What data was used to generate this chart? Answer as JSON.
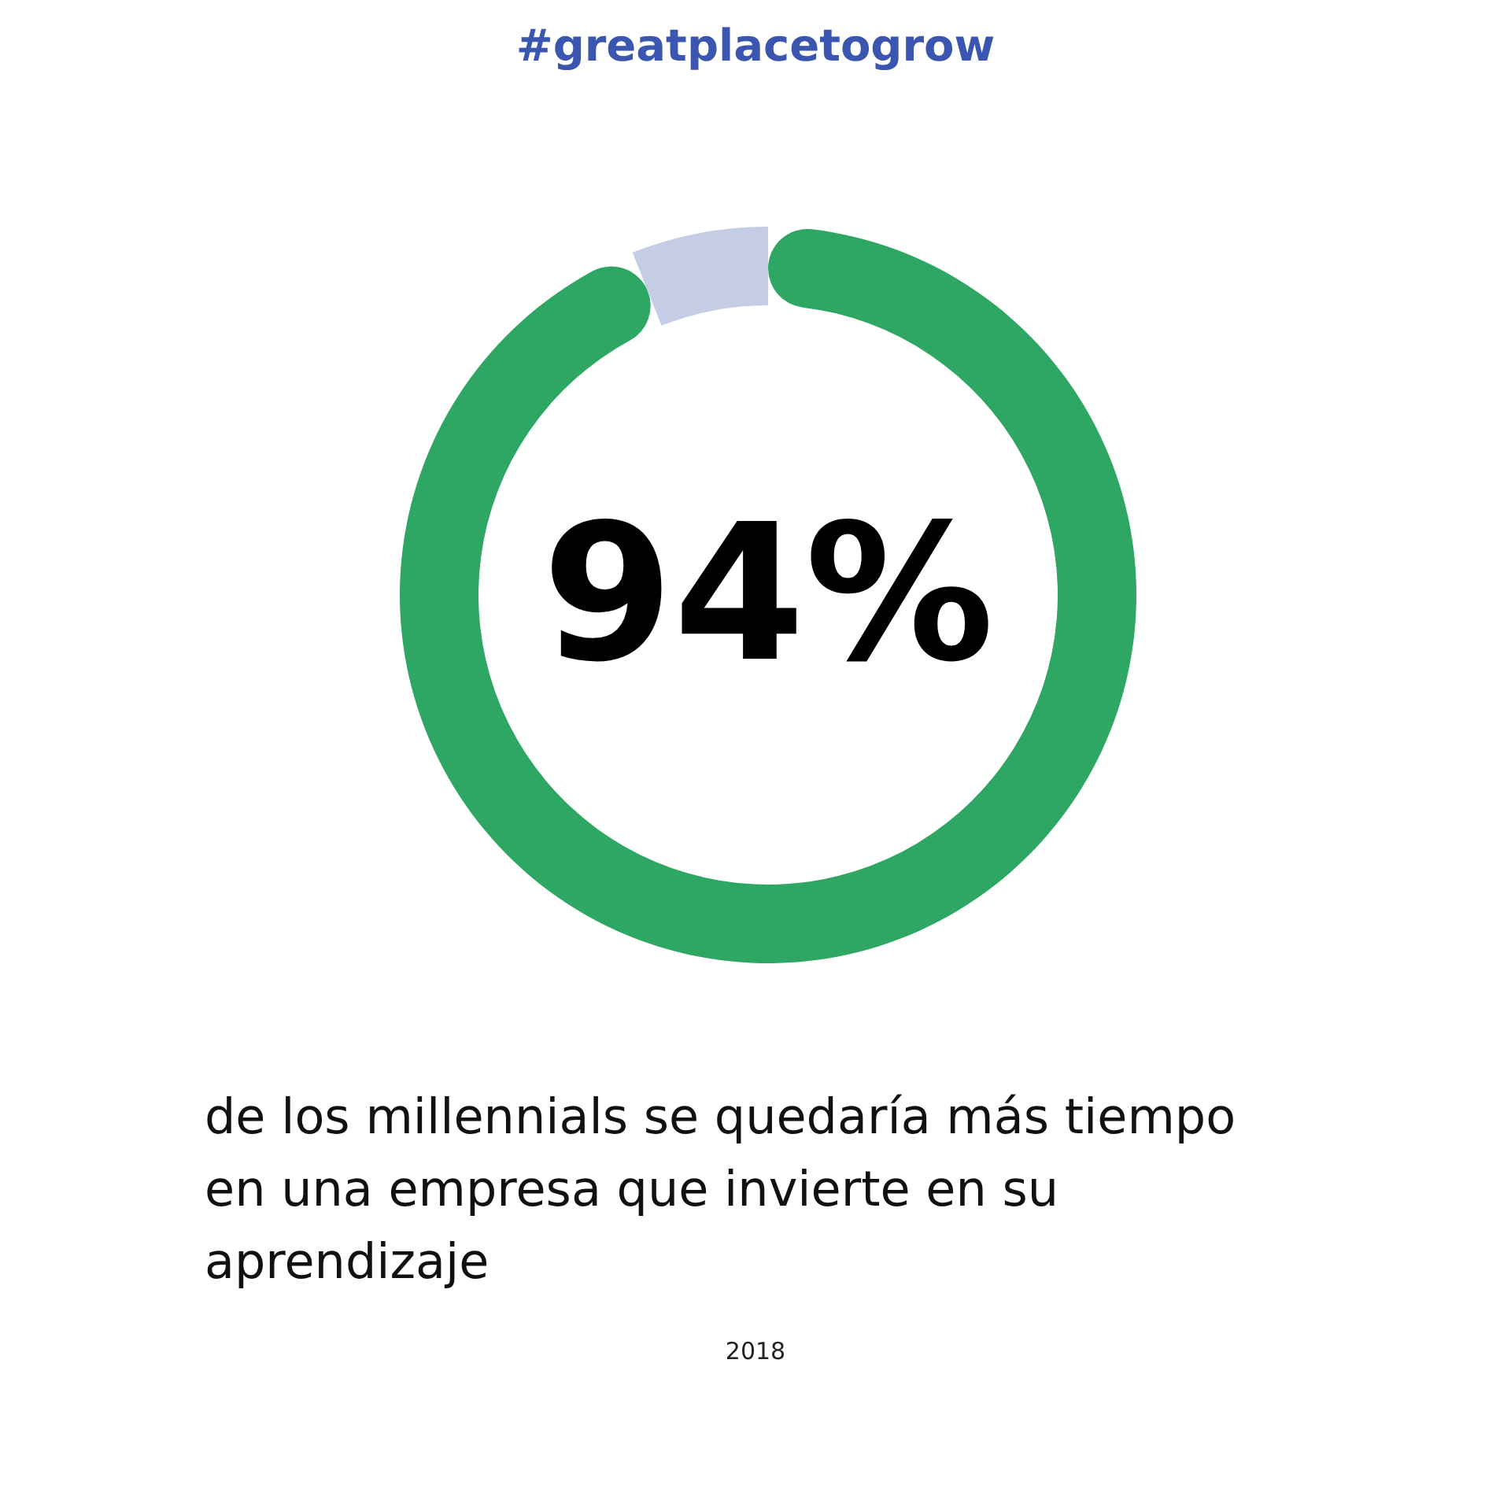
{
  "chart_data": {
    "type": "donut",
    "title": "#greatplacetogrow",
    "subtitle": "de los millennials se quedaría más tiempo en una empresa que invierte en su aprendizaje",
    "annotations": [
      "2018"
    ],
    "categories": [
      null,
      null
    ],
    "values": [
      94,
      6
    ],
    "colors": [
      "#2ea664",
      "#c5cde6"
    ],
    "value_labels": [
      "94%",
      null
    ]
  }
}
